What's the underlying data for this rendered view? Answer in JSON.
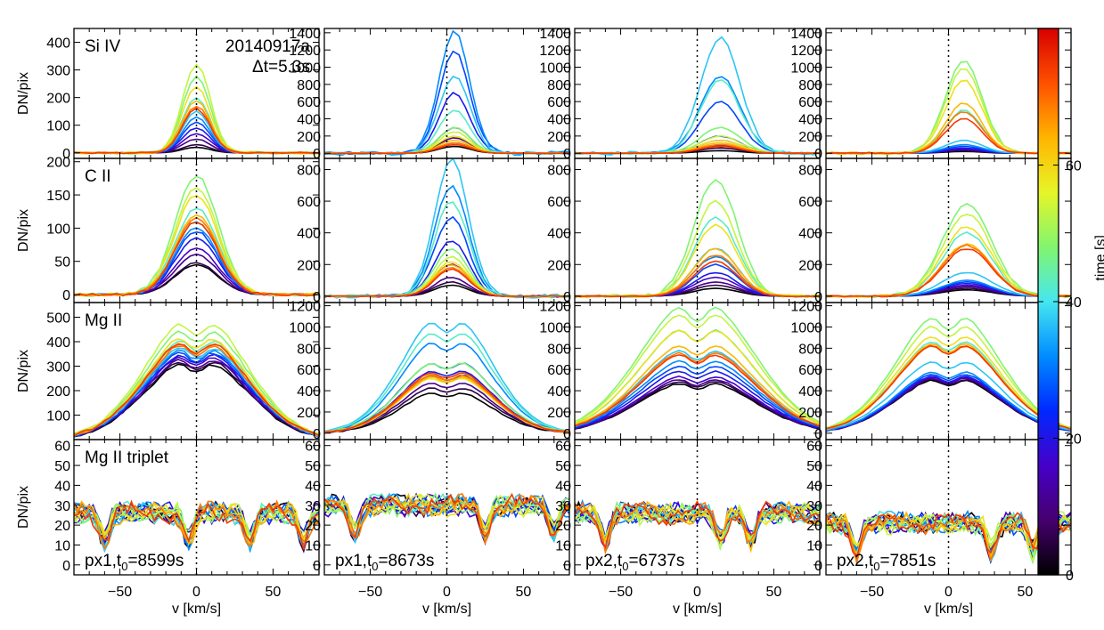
{
  "figure": {
    "observation_id": "20140917a",
    "cadence_label": "Δt=5.3s",
    "ylabel": "DN/pix",
    "xlabel": "v [km/s]",
    "colorbar_label": "time [s]",
    "colorbar_ticks": [
      0,
      20,
      40,
      60
    ],
    "colorbar_range": [
      0,
      80
    ]
  },
  "rows": [
    {
      "label": "Si IV",
      "yticks_first": [
        0,
        100,
        200,
        300,
        400
      ],
      "yrange_first": [
        -20,
        450
      ],
      "yticks_other": [
        0,
        200,
        400,
        600,
        800,
        1000,
        1200,
        1400
      ],
      "yrange_other": [
        -60,
        1450
      ]
    },
    {
      "label": "C II",
      "yticks_first": [
        0,
        50,
        100,
        150,
        200
      ],
      "yrange_first": [
        -12,
        205
      ],
      "yticks_other": [
        0,
        200,
        400,
        600,
        800
      ],
      "yrange_other": [
        -40,
        870
      ]
    },
    {
      "label": "Mg II",
      "yticks_first": [
        100,
        200,
        300,
        400,
        500
      ],
      "yrange_first": [
        0,
        560
      ],
      "yticks_other": [
        0,
        200,
        400,
        600,
        800,
        1000,
        1200
      ],
      "yrange_other": [
        -60,
        1230
      ]
    },
    {
      "label": "Mg II triplet",
      "yticks_first": [
        0,
        10,
        20,
        30,
        40,
        50,
        60
      ],
      "yrange_first": [
        -5,
        63
      ],
      "yticks_other": [
        0,
        10,
        20,
        30,
        40,
        50,
        60
      ],
      "yrange_other": [
        -5,
        63
      ]
    }
  ],
  "columns": [
    {
      "pixel": "px1",
      "t0": "8599s"
    },
    {
      "pixel": "px1",
      "t0": "8673s"
    },
    {
      "pixel": "px2",
      "t0": "6737s"
    },
    {
      "pixel": "px2",
      "t0": "7851s"
    }
  ],
  "chart_data": {
    "type": "line",
    "title": "20140917a  Δt=5.3s",
    "xlabel": "v [km/s]",
    "ylabel": "DN/pix",
    "xlim": [
      -80,
      80
    ],
    "xticks": [
      -50,
      0,
      50
    ],
    "time_snapshots_s": [
      0,
      5.3,
      10.6,
      15.9,
      21.2,
      26.5,
      31.8,
      37.1,
      42.4,
      47.7,
      53.0,
      58.3,
      63.6,
      68.9,
      74.2
    ],
    "panels_note": "16 panels: rows = Si IV, C II, Mg II, Mg II triplet; columns = px1 t0=8599s, px1 t0=8673s, px2 t0=6737s, px2 t0=7851s. Peak DN/pix per snapshot estimated from figure.",
    "peaks": [
      [
        {
          "peak": [
            20,
            30,
            50,
            70,
            90,
            110,
            130,
            150,
            200,
            280,
            320,
            240,
            190,
            170,
            160
          ],
          "center_kms": 0,
          "width_kms": 9
        },
        {
          "peak": [
            80,
            120,
            180,
            300,
            700,
            1180,
            1420,
            900,
            500,
            300,
            250,
            200,
            150,
            120,
            100
          ],
          "center_kms": 5,
          "width_kms": 10
        },
        {
          "peak": [
            30,
            60,
            90,
            150,
            200,
            600,
            900,
            1340,
            850,
            300,
            200,
            150,
            120,
            100,
            80
          ],
          "center_kms": 15,
          "width_kms": 13
        },
        {
          "peak": [
            20,
            30,
            40,
            50,
            60,
            80,
            100,
            150,
            500,
            1080,
            980,
            850,
            580,
            480,
            400
          ],
          "center_kms": 10,
          "width_kms": 12
        }
      ],
      [
        {
          "peak": [
            45,
            48,
            60,
            70,
            85,
            95,
            100,
            110,
            130,
            180,
            160,
            150,
            120,
            115,
            110
          ],
          "center_kms": 0,
          "width_kms": 14
        },
        {
          "peak": [
            70,
            90,
            120,
            200,
            350,
            500,
            700,
            860,
            600,
            300,
            250,
            220,
            200,
            180,
            170
          ],
          "center_kms": 3,
          "width_kms": 11
        },
        {
          "peak": [
            50,
            70,
            90,
            120,
            150,
            200,
            250,
            300,
            500,
            740,
            600,
            450,
            300,
            260,
            220
          ],
          "center_kms": 12,
          "width_kms": 14
        },
        {
          "peak": [
            40,
            50,
            60,
            70,
            80,
            90,
            100,
            150,
            400,
            580,
            520,
            440,
            330,
            320,
            300
          ],
          "center_kms": 12,
          "width_kms": 16
        }
      ],
      [
        {
          "peak": [
            320,
            330,
            340,
            350,
            360,
            370,
            380,
            390,
            420,
            460,
            490,
            430,
            410,
            400,
            410
          ],
          "center_kms": 0,
          "width_kms": 24
        },
        {
          "peak": [
            400,
            450,
            500,
            580,
            620,
            700,
            900,
            1100,
            1000,
            700,
            600,
            550,
            560,
            580,
            600
          ],
          "center_kms": 3,
          "width_kms": 20
        },
        {
          "peak": [
            480,
            500,
            520,
            550,
            600,
            650,
            700,
            800,
            1000,
            1220,
            1150,
            1000,
            850,
            780,
            760
          ],
          "center_kms": 8,
          "width_kms": 28
        },
        {
          "peak": [
            520,
            530,
            540,
            550,
            560,
            580,
            600,
            700,
            900,
            1130,
            1050,
            950,
            880,
            860,
            860
          ],
          "center_kms": 0,
          "width_kms": 24
        }
      ],
      [
        {
          "base": 26,
          "dips_kms": [
            -60,
            -5,
            35,
            70
          ]
        },
        {
          "base": 30,
          "dips_kms": [
            -60,
            25,
            70
          ]
        },
        {
          "base": 26,
          "dips_kms": [
            -60,
            15,
            35
          ]
        },
        {
          "base": 21,
          "dips_kms": [
            -60,
            28,
            55
          ]
        }
      ]
    ]
  }
}
